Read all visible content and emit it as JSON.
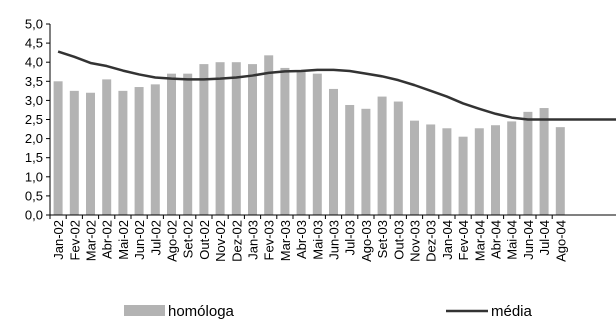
{
  "chart_data": {
    "type": "bar",
    "categories": [
      "Jan-02",
      "Fev-02",
      "Mar-02",
      "Abr-02",
      "Mai-02",
      "Jun-02",
      "Jul-02",
      "Ago-02",
      "Set-02",
      "Out-02",
      "Nov-02",
      "Dez-02",
      "Jan-03",
      "Fev-03",
      "Mar-03",
      "Abr-03",
      "Mai-03",
      "Jun-03",
      "Jul-03",
      "Ago-03",
      "Set-03",
      "Out-03",
      "Nov-03",
      "Dez-03",
      "Jan-04",
      "Fev-04",
      "Mar-04",
      "Abr-04",
      "Mai-04",
      "Jun-04",
      "Jul-04",
      "Ago-04"
    ],
    "series": [
      {
        "name": "homóloga",
        "type": "bar",
        "color": "#b3b3b3",
        "values": [
          3.5,
          3.25,
          3.2,
          3.55,
          3.25,
          3.35,
          3.42,
          3.7,
          3.7,
          3.95,
          4.0,
          4.0,
          3.95,
          4.18,
          3.85,
          3.75,
          3.7,
          3.3,
          2.88,
          2.78,
          3.1,
          2.97,
          2.47,
          2.37,
          2.27,
          2.05,
          2.27,
          2.35,
          2.45,
          2.7,
          2.8,
          2.3
        ]
      },
      {
        "name": "média",
        "type": "line",
        "color": "#333333",
        "values": [
          4.28,
          4.14,
          3.98,
          3.9,
          3.78,
          3.68,
          3.6,
          3.57,
          3.55,
          3.55,
          3.57,
          3.6,
          3.65,
          3.72,
          3.76,
          3.77,
          3.8,
          3.8,
          3.77,
          3.7,
          3.63,
          3.53,
          3.4,
          3.25,
          3.1,
          2.92,
          2.78,
          2.65,
          2.55,
          2.5,
          2.5,
          2.5
        ]
      }
    ],
    "y_ticks": [
      "0,0",
      "0,5",
      "1,0",
      "1,5",
      "2,0",
      "2,5",
      "3,0",
      "3,5",
      "4,0",
      "4,5",
      "5,0"
    ],
    "ylim": [
      0,
      5
    ],
    "legend_position": "bottom"
  }
}
